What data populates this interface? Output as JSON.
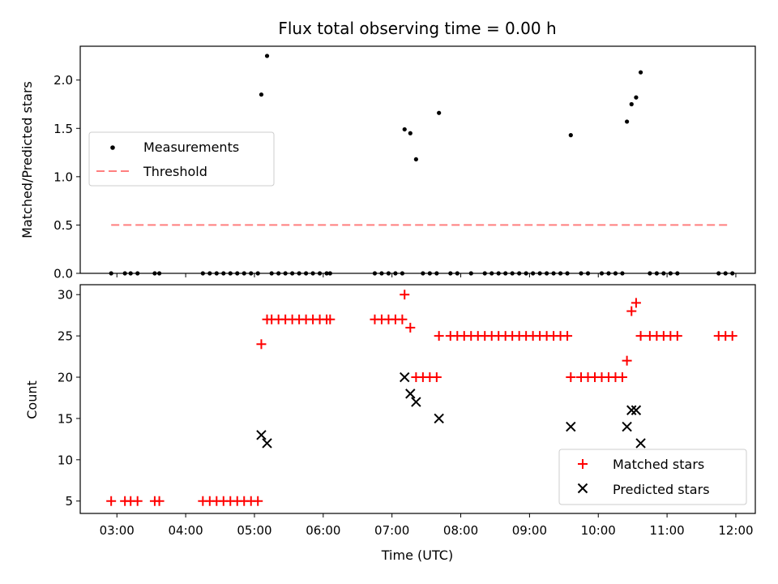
{
  "chart_data": [
    {
      "type": "scatter",
      "title": "Flux total observing time = 0.00 h",
      "xlabel": "",
      "ylabel": "Matched/Predicted stars",
      "ylim": [
        0,
        2.35
      ],
      "yticks": [
        "0.0",
        "0.5",
        "1.0",
        "1.5",
        "2.0"
      ],
      "ytick_values": [
        0,
        0.5,
        1.0,
        1.5,
        2.0
      ],
      "legend_position": "center-left",
      "colors": {
        "measurements": "#000000",
        "threshold": "#ff7f7f"
      },
      "series": [
        {
          "name": "Measurements",
          "points": [
            [
              "02:55",
              0
            ],
            [
              "03:07",
              0
            ],
            [
              "03:12",
              0
            ],
            [
              "03:18",
              0
            ],
            [
              "03:33",
              0
            ],
            [
              "03:37",
              0
            ],
            [
              "04:15",
              0
            ],
            [
              "04:21",
              0
            ],
            [
              "04:27",
              0
            ],
            [
              "04:33",
              0
            ],
            [
              "04:39",
              0
            ],
            [
              "04:45",
              0
            ],
            [
              "04:51",
              0
            ],
            [
              "04:57",
              0
            ],
            [
              "05:03",
              0
            ],
            [
              "05:06",
              1.85
            ],
            [
              "05:11",
              2.25
            ],
            [
              "05:15",
              0
            ],
            [
              "05:21",
              0
            ],
            [
              "05:27",
              0
            ],
            [
              "05:33",
              0
            ],
            [
              "05:39",
              0
            ],
            [
              "05:45",
              0
            ],
            [
              "05:51",
              0
            ],
            [
              "05:57",
              0
            ],
            [
              "06:03",
              0
            ],
            [
              "06:06",
              0
            ],
            [
              "06:45",
              0
            ],
            [
              "06:51",
              0
            ],
            [
              "06:57",
              0
            ],
            [
              "07:03",
              0
            ],
            [
              "07:09",
              0
            ],
            [
              "07:11",
              1.49
            ],
            [
              "07:16",
              1.45
            ],
            [
              "07:21",
              1.18
            ],
            [
              "07:27",
              0
            ],
            [
              "07:33",
              0
            ],
            [
              "07:39",
              0
            ],
            [
              "07:41",
              1.66
            ],
            [
              "07:51",
              0
            ],
            [
              "07:57",
              0
            ],
            [
              "08:09",
              0
            ],
            [
              "08:21",
              0
            ],
            [
              "08:27",
              0
            ],
            [
              "08:33",
              0
            ],
            [
              "08:39",
              0
            ],
            [
              "08:45",
              0
            ],
            [
              "08:51",
              0
            ],
            [
              "08:57",
              0
            ],
            [
              "09:03",
              0
            ],
            [
              "09:09",
              0
            ],
            [
              "09:15",
              0
            ],
            [
              "09:21",
              0
            ],
            [
              "09:27",
              0
            ],
            [
              "09:33",
              0
            ],
            [
              "09:36",
              1.43
            ],
            [
              "09:45",
              0
            ],
            [
              "09:51",
              0
            ],
            [
              "10:03",
              0
            ],
            [
              "10:09",
              0
            ],
            [
              "10:15",
              0
            ],
            [
              "10:21",
              0
            ],
            [
              "10:25",
              1.57
            ],
            [
              "10:29",
              1.75
            ],
            [
              "10:33",
              1.82
            ],
            [
              "10:37",
              2.08
            ],
            [
              "10:45",
              0
            ],
            [
              "10:51",
              0
            ],
            [
              "10:57",
              0
            ],
            [
              "11:03",
              0
            ],
            [
              "11:09",
              0
            ],
            [
              "11:45",
              0
            ],
            [
              "11:51",
              0
            ],
            [
              "11:57",
              0
            ]
          ]
        },
        {
          "name": "Threshold",
          "points": [
            [
              "02:55",
              0.5
            ],
            [
              "11:53",
              0.5
            ]
          ]
        }
      ]
    },
    {
      "type": "scatter",
      "title": "",
      "xlabel": "Time (UTC)",
      "ylabel": "Count",
      "ylim": [
        3.5,
        31.2
      ],
      "yticks": [
        "5",
        "10",
        "15",
        "20",
        "25",
        "30"
      ],
      "ytick_values": [
        5,
        10,
        15,
        20,
        25,
        30
      ],
      "xlim": [
        "02:28",
        "12:17"
      ],
      "xticks": [
        "03:00",
        "04:00",
        "05:00",
        "06:00",
        "07:00",
        "08:00",
        "09:00",
        "10:00",
        "11:00",
        "12:00"
      ],
      "legend_position": "lower-right",
      "colors": {
        "matched": "#ff0000",
        "predicted": "#000000"
      },
      "series": [
        {
          "name": "Matched stars",
          "points": [
            [
              "02:55",
              5
            ],
            [
              "03:07",
              5
            ],
            [
              "03:12",
              5
            ],
            [
              "03:18",
              5
            ],
            [
              "03:33",
              5
            ],
            [
              "03:37",
              5
            ],
            [
              "04:15",
              5
            ],
            [
              "04:21",
              5
            ],
            [
              "04:27",
              5
            ],
            [
              "04:33",
              5
            ],
            [
              "04:39",
              5
            ],
            [
              "04:45",
              5
            ],
            [
              "04:51",
              5
            ],
            [
              "04:57",
              5
            ],
            [
              "05:03",
              5
            ],
            [
              "05:06",
              24
            ],
            [
              "05:11",
              27
            ],
            [
              "05:15",
              27
            ],
            [
              "05:21",
              27
            ],
            [
              "05:27",
              27
            ],
            [
              "05:33",
              27
            ],
            [
              "05:39",
              27
            ],
            [
              "05:45",
              27
            ],
            [
              "05:51",
              27
            ],
            [
              "05:57",
              27
            ],
            [
              "06:03",
              27
            ],
            [
              "06:06",
              27
            ],
            [
              "06:45",
              27
            ],
            [
              "06:51",
              27
            ],
            [
              "06:57",
              27
            ],
            [
              "07:03",
              27
            ],
            [
              "07:09",
              27
            ],
            [
              "07:11",
              30
            ],
            [
              "07:16",
              26
            ],
            [
              "07:21",
              20
            ],
            [
              "07:27",
              20
            ],
            [
              "07:33",
              20
            ],
            [
              "07:39",
              20
            ],
            [
              "07:41",
              25
            ],
            [
              "07:51",
              25
            ],
            [
              "07:57",
              25
            ],
            [
              "08:03",
              25
            ],
            [
              "08:09",
              25
            ],
            [
              "08:15",
              25
            ],
            [
              "08:21",
              25
            ],
            [
              "08:27",
              25
            ],
            [
              "08:33",
              25
            ],
            [
              "08:39",
              25
            ],
            [
              "08:45",
              25
            ],
            [
              "08:51",
              25
            ],
            [
              "08:57",
              25
            ],
            [
              "09:03",
              25
            ],
            [
              "09:09",
              25
            ],
            [
              "09:15",
              25
            ],
            [
              "09:21",
              25
            ],
            [
              "09:27",
              25
            ],
            [
              "09:33",
              25
            ],
            [
              "09:36",
              20
            ],
            [
              "09:45",
              20
            ],
            [
              "09:51",
              20
            ],
            [
              "09:57",
              20
            ],
            [
              "10:03",
              20
            ],
            [
              "10:09",
              20
            ],
            [
              "10:15",
              20
            ],
            [
              "10:21",
              20
            ],
            [
              "10:25",
              22
            ],
            [
              "10:29",
              28
            ],
            [
              "10:33",
              29
            ],
            [
              "10:37",
              25
            ],
            [
              "10:45",
              25
            ],
            [
              "10:51",
              25
            ],
            [
              "10:57",
              25
            ],
            [
              "11:03",
              25
            ],
            [
              "11:09",
              25
            ],
            [
              "11:45",
              25
            ],
            [
              "11:51",
              25
            ],
            [
              "11:57",
              25
            ]
          ]
        },
        {
          "name": "Predicted stars",
          "points": [
            [
              "05:06",
              13
            ],
            [
              "05:11",
              12
            ],
            [
              "07:11",
              20
            ],
            [
              "07:16",
              18
            ],
            [
              "07:21",
              17
            ],
            [
              "07:41",
              15
            ],
            [
              "09:36",
              14
            ],
            [
              "10:25",
              14
            ],
            [
              "10:29",
              16
            ],
            [
              "10:33",
              16
            ],
            [
              "10:37",
              12
            ]
          ]
        }
      ]
    }
  ]
}
